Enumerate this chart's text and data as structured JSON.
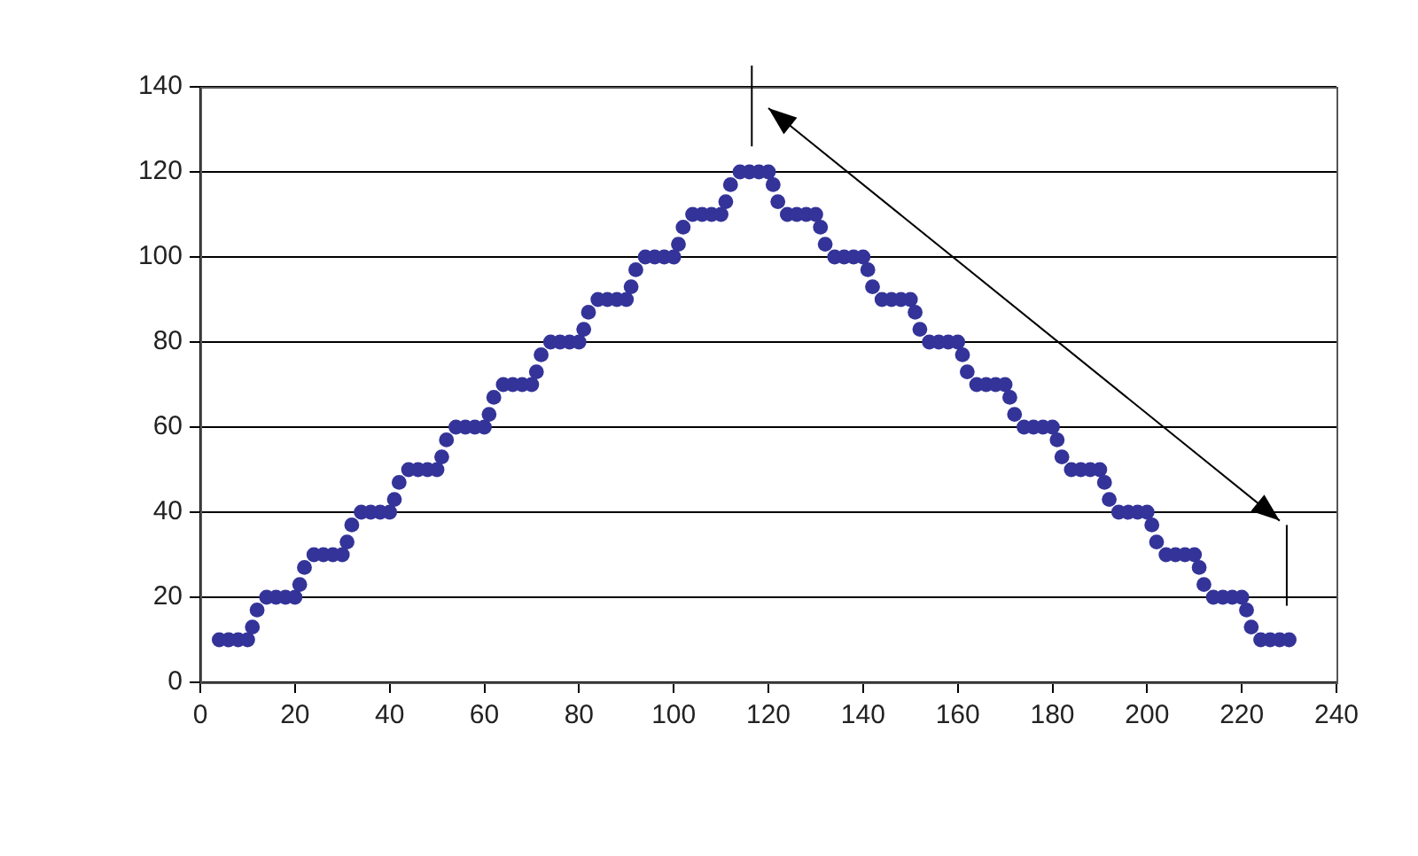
{
  "chart_data": {
    "type": "scatter",
    "marker": "circle",
    "grid": "y",
    "legend": false,
    "xlim": [
      0,
      240
    ],
    "xticks": [
      0,
      20,
      40,
      60,
      80,
      100,
      120,
      140,
      160,
      180,
      200,
      220,
      240
    ],
    "ylim": [
      0,
      140
    ],
    "yticks": [
      0,
      20,
      40,
      60,
      80,
      100,
      120,
      140
    ],
    "series": [
      {
        "color": "#333399",
        "x": [
          4,
          6,
          8,
          10,
          11,
          12,
          14,
          16,
          18,
          20,
          21,
          22,
          24,
          26,
          28,
          30,
          31,
          32,
          34,
          36,
          38,
          40,
          41,
          42,
          44,
          46,
          48,
          50,
          51,
          52,
          54,
          56,
          58,
          60,
          61,
          62,
          64,
          66,
          68,
          70,
          71,
          72,
          74,
          76,
          78,
          80,
          81,
          82,
          84,
          86,
          88,
          90,
          91,
          92,
          94,
          96,
          98,
          100,
          101,
          102,
          104,
          106,
          108,
          110,
          111,
          112,
          114,
          116,
          118,
          120,
          121,
          122,
          124,
          126,
          128,
          130,
          131,
          132,
          134,
          136,
          138,
          140,
          141,
          142,
          144,
          146,
          148,
          150,
          151,
          152,
          154,
          156,
          158,
          160,
          161,
          162,
          164,
          166,
          168,
          170,
          171,
          172,
          174,
          176,
          178,
          180,
          181,
          182,
          184,
          186,
          188,
          190,
          191,
          192,
          194,
          196,
          198,
          200,
          201,
          202,
          204,
          206,
          208,
          210,
          211,
          212,
          214,
          216,
          218,
          220,
          221,
          222,
          224,
          226,
          228,
          230
        ],
        "values": [
          10,
          10,
          10,
          10,
          13,
          17,
          20,
          20,
          20,
          20,
          23,
          27,
          30,
          30,
          30,
          30,
          33,
          37,
          40,
          40,
          40,
          40,
          43,
          47,
          50,
          50,
          50,
          50,
          53,
          57,
          60,
          60,
          60,
          60,
          63,
          67,
          70,
          70,
          70,
          70,
          73,
          77,
          80,
          80,
          80,
          80,
          83,
          87,
          90,
          90,
          90,
          90,
          93,
          97,
          100,
          100,
          100,
          100,
          103,
          107,
          110,
          110,
          110,
          110,
          113,
          117,
          120,
          120,
          120,
          120,
          117,
          113,
          110,
          110,
          110,
          110,
          107,
          103,
          100,
          100,
          100,
          100,
          97,
          93,
          90,
          90,
          90,
          90,
          87,
          83,
          80,
          80,
          80,
          80,
          77,
          73,
          70,
          70,
          70,
          70,
          67,
          63,
          60,
          60,
          60,
          60,
          57,
          53,
          50,
          50,
          50,
          50,
          47,
          43,
          40,
          40,
          40,
          40,
          37,
          33,
          30,
          30,
          30,
          30,
          27,
          23,
          20,
          20,
          20,
          20,
          17,
          13,
          10,
          10,
          10,
          10
        ]
      }
    ]
  }
}
